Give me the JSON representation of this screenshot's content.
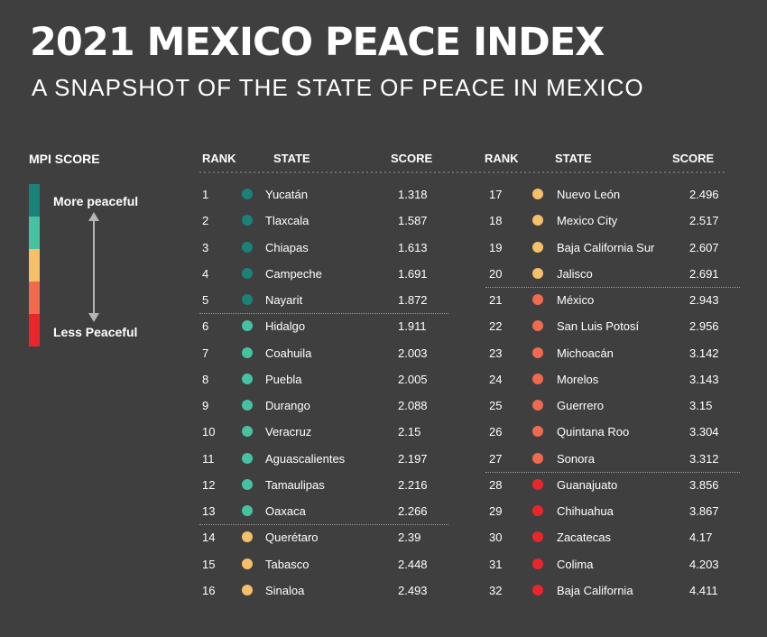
{
  "title": "2021 MEXICO PEACE INDEX",
  "subtitle": "A SNAPSHOT OF THE STATE OF PEACE IN MEXICO",
  "legend": {
    "title": "MPI SCORE",
    "more_label": "More peaceful",
    "less_label": "Less Peaceful",
    "colors": [
      "#1a8278",
      "#47c2a1",
      "#f6c06a",
      "#f06a4f",
      "#e8262b"
    ]
  },
  "headers": {
    "rank": "RANK",
    "state": "STATE",
    "score": "SCORE"
  },
  "chart_data": {
    "type": "table",
    "columns": [
      "RANK",
      "STATE",
      "SCORE"
    ],
    "tiers": [
      {
        "level": 1,
        "color": "#1a8278",
        "ranks": [
          1,
          5
        ]
      },
      {
        "level": 2,
        "color": "#47c2a1",
        "ranks": [
          6,
          13
        ]
      },
      {
        "level": 3,
        "color": "#f6c06a",
        "ranks": [
          14,
          20
        ]
      },
      {
        "level": 4,
        "color": "#f06a4f",
        "ranks": [
          21,
          27
        ]
      },
      {
        "level": 5,
        "color": "#e8262b",
        "ranks": [
          28,
          32
        ]
      }
    ],
    "rows": [
      {
        "rank": "1",
        "state": "Yucatán",
        "score": "1.318",
        "tier": 1
      },
      {
        "rank": "2",
        "state": "Tlaxcala",
        "score": "1.587",
        "tier": 1
      },
      {
        "rank": "3",
        "state": "Chiapas",
        "score": "1.613",
        "tier": 1
      },
      {
        "rank": "4",
        "state": "Campeche",
        "score": "1.691",
        "tier": 1
      },
      {
        "rank": "5",
        "state": "Nayarit",
        "score": "1.872",
        "tier": 1
      },
      {
        "rank": "6",
        "state": "Hidalgo",
        "score": "1.911",
        "tier": 2
      },
      {
        "rank": "7",
        "state": "Coahuila",
        "score": "2.003",
        "tier": 2
      },
      {
        "rank": "8",
        "state": "Puebla",
        "score": "2.005",
        "tier": 2
      },
      {
        "rank": "9",
        "state": "Durango",
        "score": "2.088",
        "tier": 2
      },
      {
        "rank": "10",
        "state": "Veracruz",
        "score": "2.15",
        "tier": 2
      },
      {
        "rank": "11",
        "state": "Aguascalientes",
        "score": "2.197",
        "tier": 2
      },
      {
        "rank": "12",
        "state": "Tamaulipas",
        "score": "2.216",
        "tier": 2
      },
      {
        "rank": "13",
        "state": "Oaxaca",
        "score": "2.266",
        "tier": 2
      },
      {
        "rank": "14",
        "state": "Querétaro",
        "score": "2.39",
        "tier": 3
      },
      {
        "rank": "15",
        "state": "Tabasco",
        "score": "2.448",
        "tier": 3
      },
      {
        "rank": "16",
        "state": "Sinaloa",
        "score": "2.493",
        "tier": 3
      },
      {
        "rank": "17",
        "state": "Nuevo León",
        "score": "2.496",
        "tier": 3
      },
      {
        "rank": "18",
        "state": "Mexico City",
        "score": "2.517",
        "tier": 3
      },
      {
        "rank": "19",
        "state": "Baja California Sur",
        "score": "2.607",
        "tier": 3
      },
      {
        "rank": "20",
        "state": "Jalisco",
        "score": "2.691",
        "tier": 3
      },
      {
        "rank": "21",
        "state": "México",
        "score": "2.943",
        "tier": 4
      },
      {
        "rank": "22",
        "state": "San Luis Potosí",
        "score": "2.956",
        "tier": 4
      },
      {
        "rank": "23",
        "state": "Michoacán",
        "score": "3.142",
        "tier": 4
      },
      {
        "rank": "24",
        "state": "Morelos",
        "score": "3.143",
        "tier": 4
      },
      {
        "rank": "25",
        "state": "Guerrero",
        "score": "3.15",
        "tier": 4
      },
      {
        "rank": "26",
        "state": "Quintana Roo",
        "score": "3.304",
        "tier": 4
      },
      {
        "rank": "27",
        "state": "Sonora",
        "score": "3.312",
        "tier": 4
      },
      {
        "rank": "28",
        "state": "Guanajuato",
        "score": "3.856",
        "tier": 5
      },
      {
        "rank": "29",
        "state": "Chihuahua",
        "score": "3.867",
        "tier": 5
      },
      {
        "rank": "30",
        "state": "Zacatecas",
        "score": "4.17",
        "tier": 5
      },
      {
        "rank": "31",
        "state": "Colima",
        "score": "4.203",
        "tier": 5
      },
      {
        "rank": "32",
        "state": "Baja California",
        "score": "4.411",
        "tier": 5
      }
    ]
  }
}
